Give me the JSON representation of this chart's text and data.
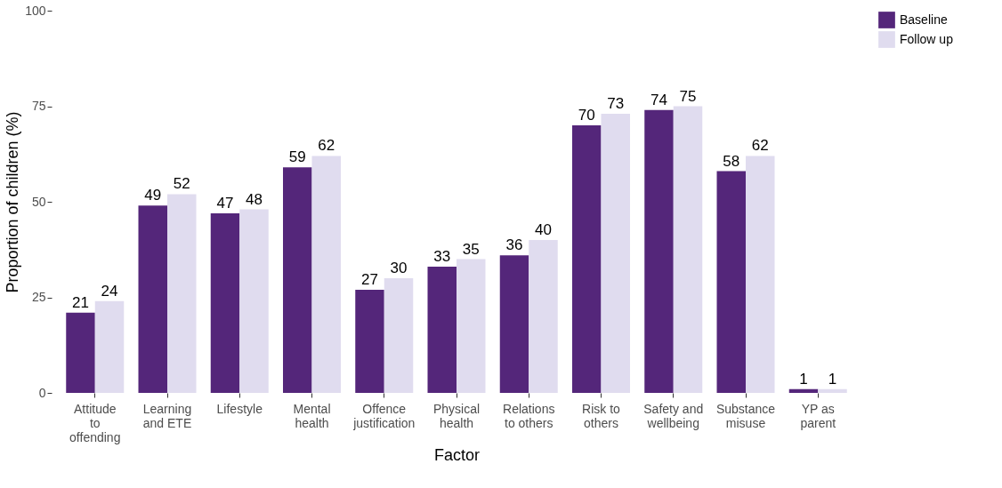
{
  "chart_data": {
    "type": "bar",
    "xlabel": "Factor",
    "ylabel": "Proportion of children (%)",
    "categories": [
      "Attitude to offending",
      "Learning and ETE",
      "Lifestyle",
      "Mental health",
      "Offence justification",
      "Physical health",
      "Relations to others",
      "Risk to others",
      "Safety and wellbeing",
      "Substance misuse",
      "YP as parent"
    ],
    "series": [
      {
        "name": "Baseline",
        "color": "#54267a",
        "values": [
          21,
          49,
          47,
          59,
          27,
          33,
          36,
          70,
          74,
          58,
          1
        ]
      },
      {
        "name": "Follow up",
        "color": "#e0dcef",
        "values": [
          24,
          52,
          48,
          62,
          30,
          35,
          40,
          73,
          75,
          62,
          1
        ]
      }
    ],
    "ylim": [
      0,
      100
    ],
    "yticks": [
      0,
      25,
      50,
      75,
      100
    ],
    "grid": false,
    "legend": "right",
    "data_labels": true
  }
}
